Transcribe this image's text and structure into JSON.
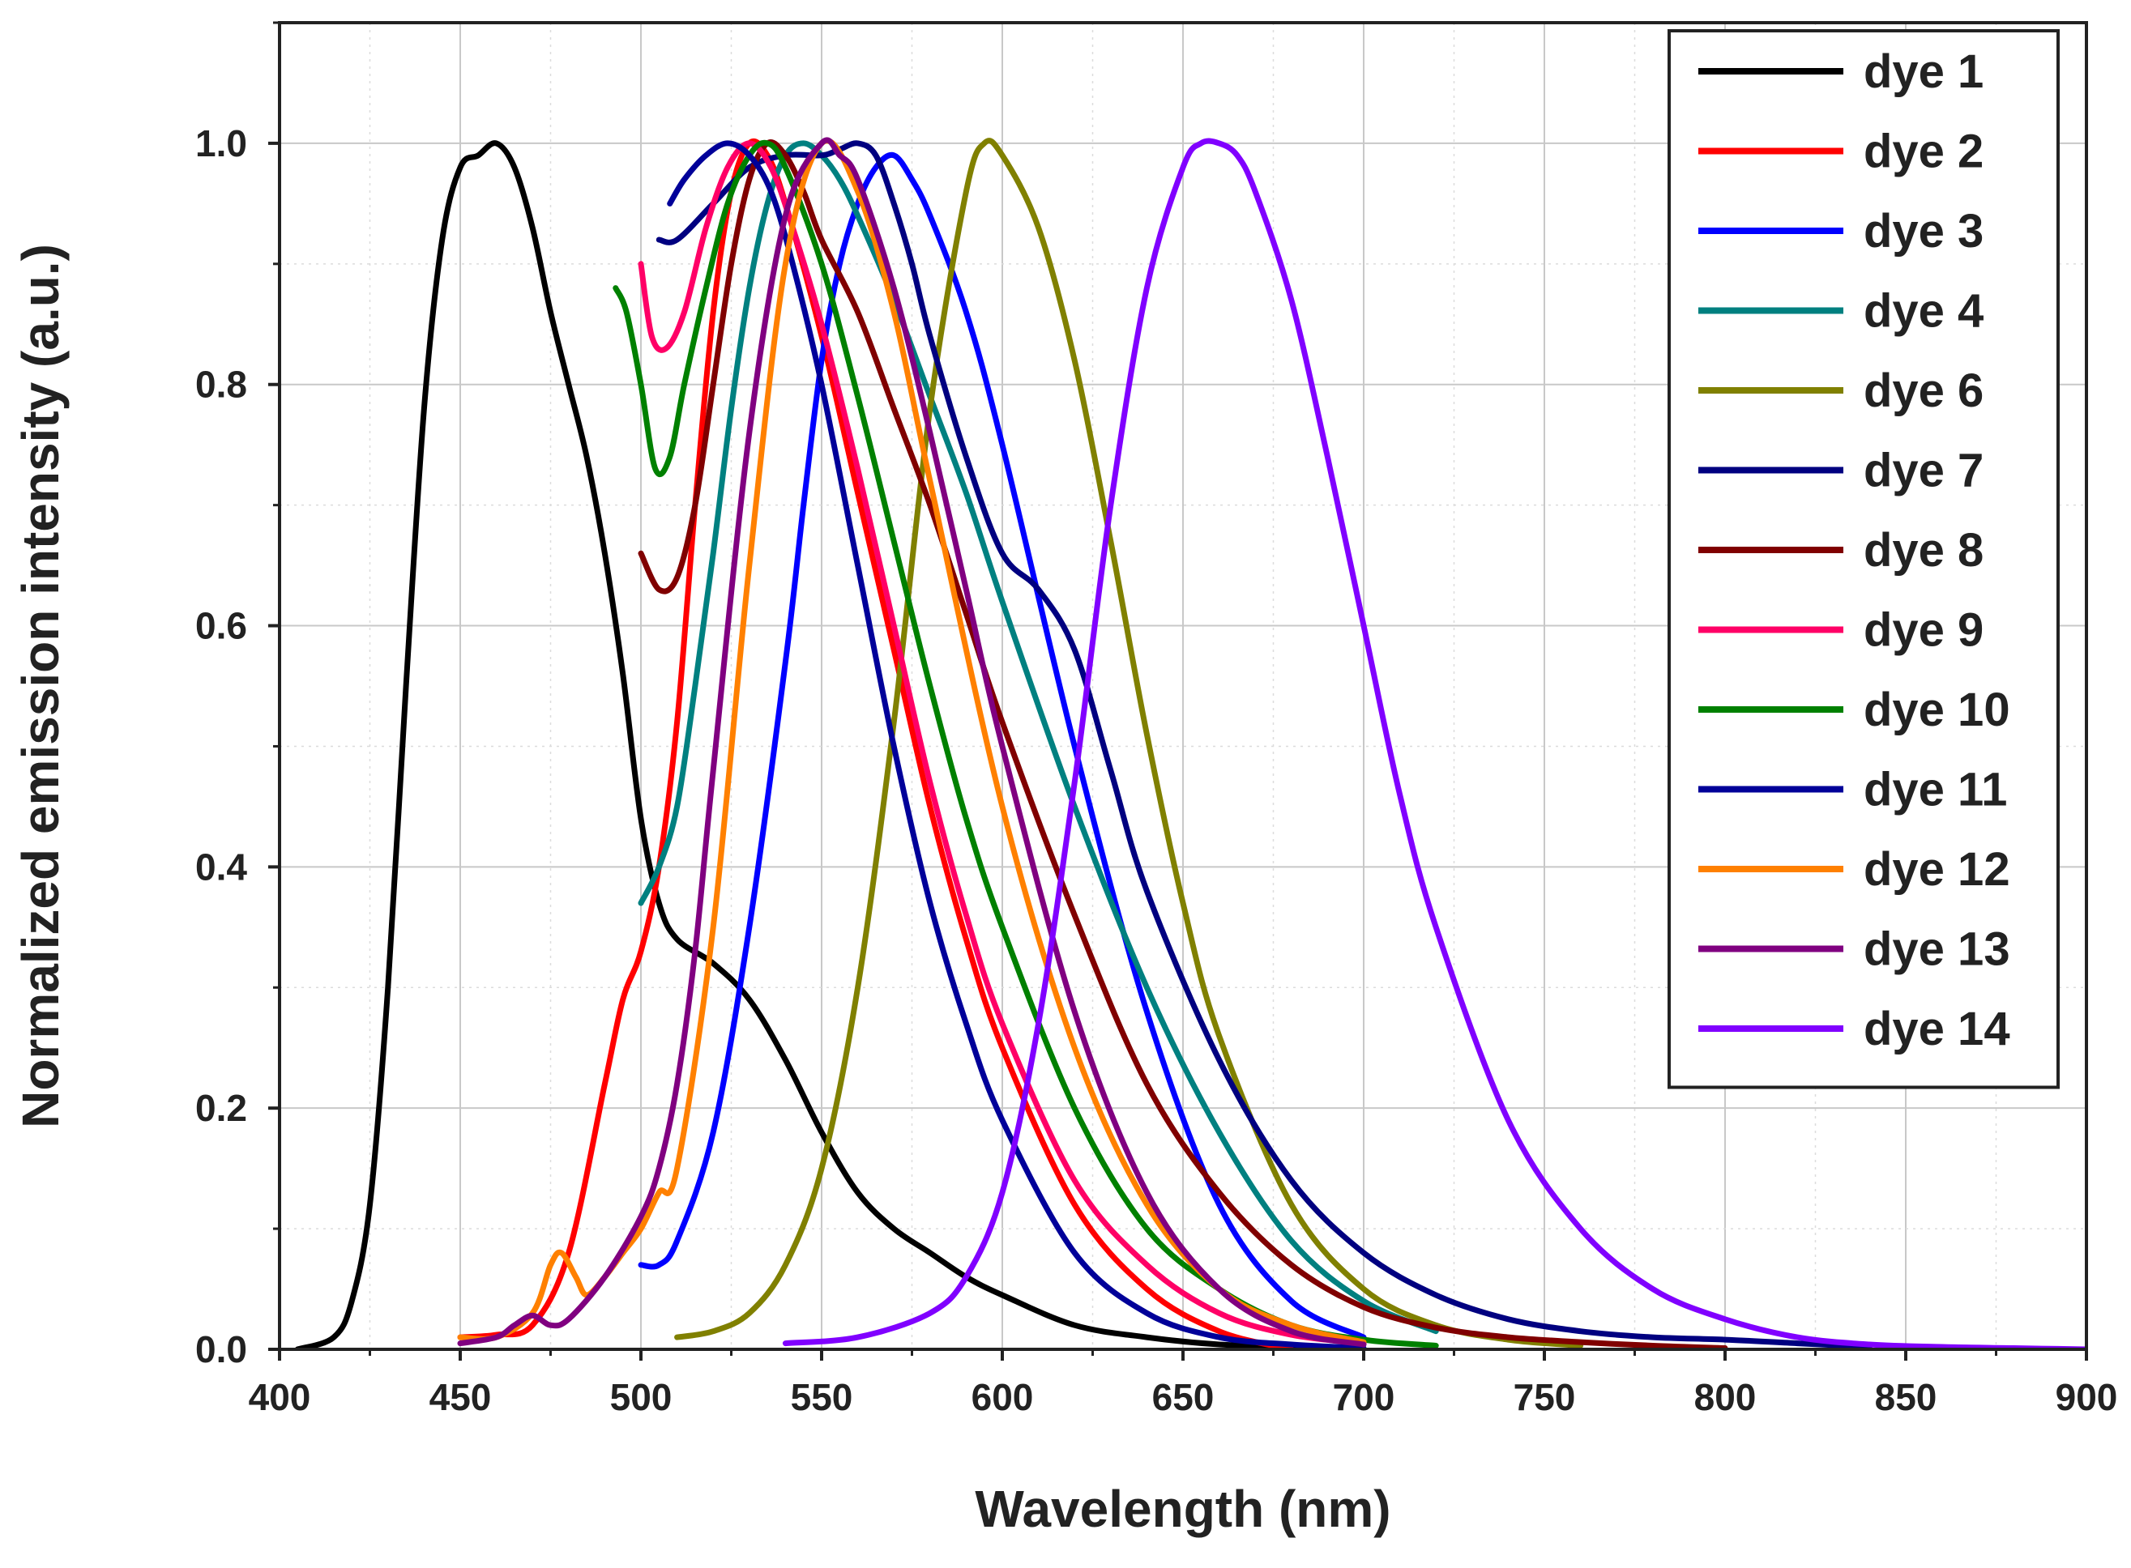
{
  "chart_data": {
    "type": "line",
    "title": "",
    "xlabel": "Wavelength (nm)",
    "ylabel": "Normalized emission intensity (a.u.)",
    "xlim": [
      400,
      900
    ],
    "ylim": [
      0.0,
      1.1
    ],
    "xticks": [
      400,
      450,
      500,
      550,
      600,
      650,
      700,
      750,
      800,
      850,
      900
    ],
    "xtick_labels": [
      "400",
      "450",
      "500",
      "550",
      "600",
      "650",
      "700",
      "750",
      "800",
      "850",
      "900"
    ],
    "yticks": [
      0.0,
      0.2,
      0.4,
      0.6,
      0.8,
      1.0
    ],
    "ytick_labels": [
      "0.0",
      "0.2",
      "0.4",
      "0.6",
      "0.8",
      "1.0"
    ],
    "grid": true,
    "legend_position": "top-right",
    "series": [
      {
        "name": "dye 1",
        "color": "#000000",
        "x": [
          405,
          415,
          420,
          425,
          430,
          435,
          440,
          445,
          450,
          455,
          460,
          465,
          470,
          475,
          480,
          485,
          490,
          495,
          500,
          505,
          510,
          520,
          530,
          540,
          550,
          560,
          570,
          580,
          590,
          600,
          620,
          640,
          660,
          680,
          700
        ],
        "y": [
          0,
          0.01,
          0.04,
          0.12,
          0.3,
          0.55,
          0.78,
          0.92,
          0.98,
          0.99,
          1.0,
          0.98,
          0.93,
          0.86,
          0.8,
          0.74,
          0.66,
          0.56,
          0.44,
          0.37,
          0.34,
          0.32,
          0.29,
          0.24,
          0.18,
          0.13,
          0.1,
          0.08,
          0.06,
          0.045,
          0.02,
          0.01,
          0.004,
          0.002,
          0
        ]
      },
      {
        "name": "dye 2",
        "color": "#ff0000",
        "x": [
          450,
          460,
          470,
          480,
          490,
          495,
          500,
          505,
          510,
          515,
          520,
          525,
          530,
          535,
          540,
          550,
          560,
          570,
          580,
          590,
          600,
          620,
          640,
          660,
          680
        ],
        "y": [
          0.01,
          0.012,
          0.02,
          0.08,
          0.22,
          0.29,
          0.33,
          0.4,
          0.52,
          0.7,
          0.86,
          0.96,
          1.0,
          0.99,
          0.95,
          0.84,
          0.71,
          0.58,
          0.45,
          0.34,
          0.25,
          0.12,
          0.05,
          0.015,
          0
        ]
      },
      {
        "name": "dye 3",
        "color": "#0000ff",
        "x": [
          500,
          505,
          510,
          520,
          530,
          540,
          545,
          550,
          555,
          560,
          565,
          570,
          575,
          580,
          590,
          600,
          620,
          640,
          660,
          680,
          700
        ],
        "y": [
          0.07,
          0.07,
          0.09,
          0.18,
          0.35,
          0.57,
          0.7,
          0.82,
          0.9,
          0.95,
          0.98,
          0.99,
          0.97,
          0.94,
          0.86,
          0.75,
          0.5,
          0.28,
          0.12,
          0.04,
          0.01
        ]
      },
      {
        "name": "dye 4",
        "color": "#008080",
        "x": [
          500,
          505,
          510,
          515,
          520,
          525,
          530,
          535,
          540,
          545,
          550,
          555,
          560,
          570,
          580,
          590,
          600,
          620,
          640,
          660,
          680,
          700,
          720
        ],
        "y": [
          0.37,
          0.4,
          0.45,
          0.55,
          0.66,
          0.78,
          0.88,
          0.95,
          0.99,
          1.0,
          0.99,
          0.97,
          0.94,
          0.87,
          0.79,
          0.71,
          0.62,
          0.45,
          0.3,
          0.18,
          0.09,
          0.04,
          0.015
        ]
      },
      {
        "name": "dye 6",
        "color": "#808000",
        "x": [
          510,
          520,
          530,
          540,
          550,
          560,
          570,
          580,
          590,
          595,
          600,
          610,
          620,
          630,
          640,
          650,
          660,
          680,
          700,
          720,
          740,
          760
        ],
        "y": [
          0.01,
          0.015,
          0.03,
          0.07,
          0.15,
          0.3,
          0.52,
          0.78,
          0.96,
          1.0,
          0.99,
          0.93,
          0.82,
          0.67,
          0.51,
          0.37,
          0.26,
          0.12,
          0.05,
          0.02,
          0.008,
          0.003
        ]
      },
      {
        "name": "dye 7",
        "color": "#000080",
        "x": [
          505,
          510,
          520,
          530,
          540,
          550,
          555,
          560,
          565,
          570,
          575,
          580,
          590,
          600,
          610,
          620,
          630,
          640,
          660,
          680,
          700,
          720,
          740,
          760,
          780,
          800,
          820,
          840
        ],
        "y": [
          0.92,
          0.92,
          0.95,
          0.98,
          0.99,
          0.99,
          0.995,
          1.0,
          0.99,
          0.95,
          0.9,
          0.84,
          0.74,
          0.66,
          0.63,
          0.58,
          0.48,
          0.38,
          0.24,
          0.14,
          0.08,
          0.045,
          0.025,
          0.015,
          0.01,
          0.008,
          0.005,
          0.002
        ]
      },
      {
        "name": "dye 8",
        "color": "#800000",
        "x": [
          500,
          505,
          510,
          515,
          520,
          525,
          530,
          535,
          540,
          545,
          550,
          560,
          570,
          580,
          590,
          600,
          620,
          640,
          660,
          680,
          700,
          720,
          740,
          760,
          780,
          800
        ],
        "y": [
          0.66,
          0.63,
          0.64,
          0.7,
          0.8,
          0.9,
          0.97,
          1.0,
          0.99,
          0.96,
          0.92,
          0.86,
          0.78,
          0.7,
          0.61,
          0.52,
          0.36,
          0.22,
          0.13,
          0.07,
          0.035,
          0.018,
          0.01,
          0.006,
          0.003,
          0.001
        ]
      },
      {
        "name": "dye 9",
        "color": "#ff0066",
        "x": [
          500,
          503,
          507,
          512,
          518,
          524,
          530,
          536,
          542,
          550,
          560,
          570,
          580,
          590,
          600,
          620,
          640,
          660,
          680,
          700
        ],
        "y": [
          0.9,
          0.84,
          0.83,
          0.86,
          0.93,
          0.98,
          1.0,
          0.98,
          0.93,
          0.85,
          0.73,
          0.6,
          0.47,
          0.36,
          0.27,
          0.14,
          0.07,
          0.03,
          0.012,
          0.005
        ]
      },
      {
        "name": "dye 10",
        "color": "#008000",
        "x": [
          493,
          496,
          500,
          504,
          508,
          512,
          518,
          524,
          530,
          535,
          540,
          550,
          560,
          570,
          580,
          590,
          600,
          620,
          640,
          660,
          680,
          700,
          720
        ],
        "y": [
          0.88,
          0.86,
          0.8,
          0.73,
          0.74,
          0.8,
          0.88,
          0.95,
          0.99,
          1.0,
          0.98,
          0.9,
          0.79,
          0.67,
          0.55,
          0.44,
          0.35,
          0.2,
          0.1,
          0.05,
          0.02,
          0.008,
          0.003
        ]
      },
      {
        "name": "dye 11",
        "color": "#000099",
        "x": [
          508,
          512,
          518,
          524,
          530,
          536,
          542,
          550,
          560,
          570,
          580,
          590,
          600,
          620,
          640,
          660,
          680,
          700
        ],
        "y": [
          0.95,
          0.97,
          0.99,
          1.0,
          0.99,
          0.96,
          0.9,
          0.8,
          0.65,
          0.5,
          0.37,
          0.27,
          0.19,
          0.08,
          0.03,
          0.01,
          0.004,
          0.001
        ]
      },
      {
        "name": "dye 12",
        "color": "#ff8000",
        "x": [
          450,
          460,
          470,
          475,
          478,
          482,
          485,
          490,
          495,
          500,
          505,
          510,
          520,
          530,
          540,
          550,
          560,
          570,
          580,
          600,
          620,
          640,
          660,
          680,
          700
        ],
        "y": [
          0.01,
          0.01,
          0.03,
          0.07,
          0.08,
          0.06,
          0.045,
          0.06,
          0.08,
          0.1,
          0.13,
          0.15,
          0.35,
          0.65,
          0.9,
          1.0,
          0.96,
          0.86,
          0.72,
          0.45,
          0.25,
          0.12,
          0.05,
          0.02,
          0.006
        ]
      },
      {
        "name": "dye 13",
        "color": "#800080",
        "x": [
          450,
          460,
          465,
          470,
          475,
          480,
          490,
          500,
          505,
          510,
          515,
          520,
          530,
          540,
          550,
          555,
          560,
          570,
          580,
          590,
          600,
          620,
          640,
          660,
          680,
          700
        ],
        "y": [
          0.005,
          0.01,
          0.02,
          0.028,
          0.02,
          0.025,
          0.06,
          0.11,
          0.15,
          0.22,
          0.33,
          0.48,
          0.76,
          0.94,
          1.0,
          0.99,
          0.97,
          0.88,
          0.76,
          0.63,
          0.5,
          0.28,
          0.13,
          0.05,
          0.015,
          0.004
        ]
      },
      {
        "name": "dye 14",
        "color": "#8000ff",
        "x": [
          540,
          560,
          580,
          590,
          600,
          610,
          620,
          630,
          640,
          650,
          655,
          660,
          665,
          670,
          680,
          690,
          700,
          710,
          720,
          740,
          760,
          780,
          800,
          820,
          840,
          860,
          880,
          900
        ],
        "y": [
          0.005,
          0.01,
          0.03,
          0.06,
          0.13,
          0.27,
          0.47,
          0.7,
          0.88,
          0.98,
          1.0,
          1.0,
          0.99,
          0.96,
          0.87,
          0.74,
          0.6,
          0.46,
          0.35,
          0.19,
          0.1,
          0.05,
          0.025,
          0.01,
          0.004,
          0.002,
          0.001,
          0
        ]
      }
    ]
  }
}
